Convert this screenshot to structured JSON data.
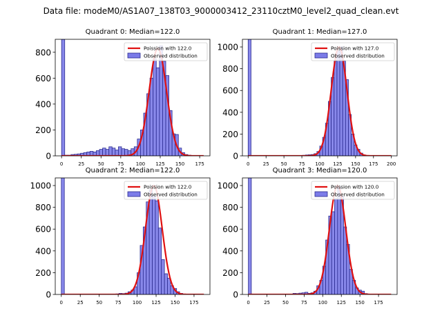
{
  "figure": {
    "suptitle": "Data file: modeM0/AS1A07_138T03_9000003412_23110cztM0_level2_quad_clean.evt"
  },
  "colors": {
    "bar_fill": "#7b7be8",
    "bar_edge": "#2b2b8f",
    "curve": "#e01010",
    "axis": "#000000"
  },
  "chart_data": [
    {
      "type": "bar",
      "title": "Quadrant 0: Median=122.0",
      "xlim": [
        -8,
        188
      ],
      "ylim": [
        0,
        900
      ],
      "xticks": [
        0,
        25,
        50,
        75,
        100,
        125,
        150,
        175
      ],
      "yticks": [
        0,
        200,
        400,
        600,
        800
      ],
      "bin_width": 4,
      "legend": {
        "location": "top-right",
        "entries": [
          "Poission with 122.0",
          "Observed distribution"
        ]
      },
      "median": 122.0,
      "curve_amplitude": 830,
      "curve_sigma": 11,
      "bins": [
        [
          0,
          900
        ],
        [
          4,
          5
        ],
        [
          8,
          5
        ],
        [
          12,
          10
        ],
        [
          16,
          12
        ],
        [
          20,
          15
        ],
        [
          24,
          20
        ],
        [
          28,
          25
        ],
        [
          32,
          30
        ],
        [
          36,
          35
        ],
        [
          40,
          30
        ],
        [
          44,
          40
        ],
        [
          48,
          50
        ],
        [
          52,
          60
        ],
        [
          56,
          50
        ],
        [
          60,
          70
        ],
        [
          64,
          60
        ],
        [
          68,
          45
        ],
        [
          72,
          70
        ],
        [
          76,
          55
        ],
        [
          80,
          50
        ],
        [
          84,
          40
        ],
        [
          88,
          55
        ],
        [
          92,
          70
        ],
        [
          96,
          130
        ],
        [
          100,
          200
        ],
        [
          104,
          330
        ],
        [
          108,
          480
        ],
        [
          112,
          600
        ],
        [
          116,
          750
        ],
        [
          120,
          680
        ],
        [
          124,
          850
        ],
        [
          128,
          730
        ],
        [
          132,
          620
        ],
        [
          136,
          350
        ],
        [
          140,
          170
        ],
        [
          144,
          165
        ],
        [
          148,
          60
        ],
        [
          152,
          25
        ],
        [
          156,
          10
        ],
        [
          160,
          5
        ],
        [
          164,
          2
        ]
      ]
    },
    {
      "type": "bar",
      "title": "Quadrant 1: Median=127.0",
      "xlim": [
        -8,
        208
      ],
      "ylim": [
        0,
        1070
      ],
      "xticks": [
        0,
        25,
        50,
        75,
        100,
        125,
        150,
        175,
        200
      ],
      "yticks": [
        0,
        200,
        400,
        600,
        800,
        1000
      ],
      "bin_width": 4,
      "legend": {
        "location": "top-right",
        "entries": [
          "Poission with 127.0",
          "Observed distribution"
        ]
      },
      "median": 127.0,
      "curve_amplitude": 1000,
      "curve_sigma": 11,
      "bins": [
        [
          0,
          1070
        ],
        [
          76,
          5
        ],
        [
          80,
          8
        ],
        [
          84,
          10
        ],
        [
          88,
          12
        ],
        [
          92,
          20
        ],
        [
          96,
          40
        ],
        [
          100,
          90
        ],
        [
          104,
          170
        ],
        [
          108,
          300
        ],
        [
          112,
          500
        ],
        [
          116,
          720
        ],
        [
          120,
          870
        ],
        [
          124,
          960
        ],
        [
          128,
          1000
        ],
        [
          132,
          870
        ],
        [
          136,
          700
        ],
        [
          140,
          380
        ],
        [
          144,
          200
        ],
        [
          148,
          100
        ],
        [
          152,
          60
        ],
        [
          156,
          25
        ],
        [
          160,
          8
        ],
        [
          164,
          3
        ]
      ]
    },
    {
      "type": "bar",
      "title": "Quadrant 2: Median=122.0",
      "xlim": [
        -8,
        196
      ],
      "ylim": [
        0,
        1070
      ],
      "xticks": [
        0,
        25,
        50,
        75,
        100,
        125,
        150,
        175
      ],
      "yticks": [
        0,
        200,
        400,
        600,
        800,
        1000
      ],
      "bin_width": 4,
      "legend": {
        "location": "top-right",
        "entries": [
          "Poission with 122.0",
          "Observed distribution"
        ]
      },
      "median": 122.0,
      "curve_amplitude": 1000,
      "curve_sigma": 11,
      "bins": [
        [
          0,
          1070
        ],
        [
          72,
          5
        ],
        [
          76,
          10
        ],
        [
          80,
          8
        ],
        [
          84,
          12
        ],
        [
          88,
          25
        ],
        [
          92,
          40
        ],
        [
          96,
          70
        ],
        [
          100,
          200
        ],
        [
          104,
          450
        ],
        [
          108,
          620
        ],
        [
          112,
          850
        ],
        [
          116,
          960
        ],
        [
          120,
          900
        ],
        [
          124,
          860
        ],
        [
          128,
          610
        ],
        [
          132,
          320
        ],
        [
          136,
          190
        ],
        [
          140,
          150
        ],
        [
          144,
          80
        ],
        [
          148,
          55
        ],
        [
          152,
          25
        ],
        [
          156,
          10
        ],
        [
          160,
          3
        ]
      ]
    },
    {
      "type": "bar",
      "title": "Quadrant 3: Median=120.0",
      "xlim": [
        -8,
        200
      ],
      "ylim": [
        0,
        1070
      ],
      "xticks": [
        0,
        25,
        50,
        75,
        100,
        125,
        150,
        175
      ],
      "yticks": [
        0,
        200,
        400,
        600,
        800,
        1000
      ],
      "bin_width": 4,
      "legend": {
        "location": "top-right",
        "entries": [
          "Poission with 120.0",
          "Observed distribution"
        ]
      },
      "median": 120.0,
      "curve_amplitude": 1000,
      "curve_sigma": 11,
      "bins": [
        [
          0,
          1070
        ],
        [
          60,
          10
        ],
        [
          64,
          8
        ],
        [
          68,
          12
        ],
        [
          72,
          15
        ],
        [
          76,
          20
        ],
        [
          80,
          10
        ],
        [
          84,
          15
        ],
        [
          88,
          30
        ],
        [
          92,
          80
        ],
        [
          96,
          130
        ],
        [
          100,
          260
        ],
        [
          104,
          500
        ],
        [
          108,
          720
        ],
        [
          112,
          760
        ],
        [
          116,
          880
        ],
        [
          120,
          990
        ],
        [
          124,
          900
        ],
        [
          128,
          620
        ],
        [
          132,
          460
        ],
        [
          136,
          230
        ],
        [
          140,
          130
        ],
        [
          144,
          60
        ],
        [
          148,
          40
        ],
        [
          152,
          30
        ],
        [
          156,
          8
        ],
        [
          160,
          3
        ]
      ]
    }
  ]
}
